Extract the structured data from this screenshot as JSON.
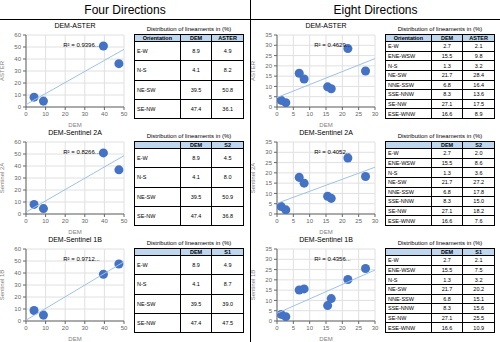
{
  "chart_data": [
    {
      "group": "Four Directions",
      "type": "scatter",
      "title": "DEM-ASTER",
      "xlabel": "DEM",
      "ylabel": "ASTER",
      "annotations": [
        "R² = 0.9396..."
      ],
      "grid": true,
      "xlim": [
        0,
        50
      ],
      "ylim": [
        0,
        60
      ],
      "xticks": [
        0,
        10,
        20,
        30,
        40,
        50
      ],
      "yticks": [
        0,
        10,
        20,
        30,
        40,
        50,
        60
      ],
      "series": [
        {
          "type": "scatter",
          "color": "#4472C4",
          "x": [
            8.9,
            4.1,
            39.5,
            47.4
          ],
          "values": [
            4.9,
            8.2,
            50.8,
            36.1
          ]
        },
        {
          "type": "line",
          "color": "#9DC3E6",
          "x": [
            0,
            50
          ],
          "values": [
            1.986,
            48.0601
          ]
        }
      ],
      "table": {
        "title": "Distribution of lineaments in (%)",
        "color": "#BDD7EE",
        "header": [
          "Orientation",
          "DEM",
          "ASTER"
        ],
        "rows": [
          [
            "E-W",
            "8.9",
            "4.9"
          ],
          [
            "N-S",
            "4.1",
            "8.2"
          ],
          [
            "NE-SW",
            "39.5",
            "50.8"
          ],
          [
            "SE-NW",
            "47.4",
            "36.1"
          ]
        ]
      }
    },
    {
      "group": "Four Directions",
      "type": "scatter",
      "title": "DEM-Sentinel 2A",
      "xlabel": "DEM",
      "ylabel": "Sentinel 2A",
      "annotations": [
        "R² = 0.8266..."
      ],
      "grid": true,
      "xlim": [
        0,
        50
      ],
      "ylim": [
        0,
        60
      ],
      "xticks": [
        0,
        10,
        20,
        30,
        40,
        50
      ],
      "yticks": [
        0,
        10,
        20,
        30,
        40,
        50,
        60
      ],
      "series": [
        {
          "type": "scatter",
          "color": "#4472C4",
          "x": [
            8.9,
            4.1,
            39.5,
            47.4
          ],
          "values": [
            4.5,
            8.0,
            50.9,
            36.8
          ]
        },
        {
          "type": "line",
          "color": "#9DC3E6",
          "x": [
            0,
            50
          ],
          "values": [
            1.5437,
            48.6033
          ]
        }
      ],
      "table": {
        "title": "Distribution of lineaments in (%)",
        "color": "#BDD7EE",
        "header": [
          null,
          "DEM",
          "S2"
        ],
        "rows": [
          [
            "E-W",
            "8.9",
            "4.5"
          ],
          [
            "N-S",
            "4.1",
            "8.0"
          ],
          [
            "NE-SW",
            "39.5",
            "50.9"
          ],
          [
            "SE-NW",
            "47.4",
            "36.8"
          ]
        ]
      }
    },
    {
      "group": "Four Directions",
      "type": "scatter",
      "title": "DEM-Sentinel 1B",
      "xlabel": "DEM",
      "ylabel": "Sentinel 1B",
      "annotations": [
        "R² = 0.9712..."
      ],
      "grid": true,
      "xlim": [
        0,
        50
      ],
      "ylim": [
        0,
        60
      ],
      "xticks": [
        0,
        10,
        20,
        30,
        40,
        50
      ],
      "yticks": [
        0,
        10,
        20,
        30,
        40,
        50,
        60
      ],
      "series": [
        {
          "type": "scatter",
          "color": "#4472C4",
          "x": [
            8.9,
            4.1,
            39.5,
            47.4
          ],
          "values": [
            4.9,
            8.7,
            39.0,
            47.5
          ]
        },
        {
          "type": "line",
          "color": "#9DC3E6",
          "x": [
            0,
            50
          ],
          "values": [
            0.7018,
            49.3969
          ]
        }
      ],
      "table": {
        "title": "Distribution of lineaments in (%)",
        "color": "#BDD7EE",
        "header": [
          null,
          "DEM",
          "S1"
        ],
        "rows": [
          [
            "E-W",
            "8.9",
            "4.9"
          ],
          [
            "N-S",
            "4.1",
            "8.7"
          ],
          [
            "NE-SW",
            "39.5",
            "39.0"
          ],
          [
            "SE-NW",
            "47.4",
            "47.5"
          ]
        ]
      }
    },
    {
      "group": "Eight Directions",
      "type": "scatter",
      "title": "DEM-ASTER",
      "xlabel": "DEM",
      "ylabel": "ASTER",
      "annotations": [
        "R² = 0.4629..."
      ],
      "grid": true,
      "xlim": [
        0,
        30
      ],
      "ylim": [
        0,
        35
      ],
      "xticks": [
        0,
        5,
        10,
        15,
        20,
        25,
        30
      ],
      "yticks": [
        0,
        5,
        10,
        15,
        20,
        25,
        30,
        35
      ],
      "series": [
        {
          "type": "scatter",
          "color": "#4472C4",
          "x": [
            2.7,
            15.5,
            1.3,
            21.7,
            6.8,
            8.3,
            27.1,
            16.6
          ],
          "values": [
            2.1,
            9.8,
            3.2,
            28.4,
            16.4,
            13.6,
            17.5,
            8.9
          ]
        },
        {
          "type": "line",
          "color": "#9DC3E6",
          "x": [
            0,
            30
          ],
          "values": [
            4.5986,
            23.532
          ]
        }
      ],
      "table": {
        "title": "Distribution of lineaments in (%)",
        "color": "#BDD7EE",
        "header": [
          "Orientation",
          "DEM",
          "ASTER"
        ],
        "rows": [
          [
            "E-W",
            "2.7",
            "2.1"
          ],
          [
            "ENE-WSW",
            "15.5",
            "9.8"
          ],
          [
            "N-S",
            "1.3",
            "3.2"
          ],
          [
            "NE-SW",
            "21.7",
            "28.4"
          ],
          [
            "NNE-SSW",
            "6.8",
            "16.4"
          ],
          [
            "SSE-NNW",
            "8.3",
            "13.6"
          ],
          [
            "SE-NW",
            "27.1",
            "17.5"
          ],
          [
            "ESE-WNW",
            "16.6",
            "8.9"
          ]
        ]
      }
    },
    {
      "group": "Eight Directions",
      "type": "scatter",
      "title": "DEM-Sentinel 2A",
      "xlabel": "DEM",
      "ylabel": "Sentinel 2A",
      "annotations": [
        "R² = 0.4052..."
      ],
      "grid": true,
      "xlim": [
        0,
        30
      ],
      "ylim": [
        0,
        35
      ],
      "xticks": [
        0,
        5,
        10,
        15,
        20,
        25,
        30
      ],
      "yticks": [
        0,
        5,
        10,
        15,
        20,
        25,
        30,
        35
      ],
      "series": [
        {
          "type": "scatter",
          "color": "#4472C4",
          "x": [
            2.7,
            15.5,
            1.3,
            21.7,
            6.8,
            8.3,
            27.1,
            16.6
          ],
          "values": [
            2.0,
            8.6,
            3.6,
            27.2,
            17.8,
            15.0,
            18.2,
            7.6
          ]
        },
        {
          "type": "line",
          "color": "#9DC3E6",
          "x": [
            0,
            30
          ],
          "values": [
            5.1804,
            22.7474
          ]
        }
      ],
      "table": {
        "title": "Distribution of lineaments in (%)",
        "color": "#BDD7EE",
        "header": [
          null,
          "DEM",
          "S2"
        ],
        "rows": [
          [
            "E-W",
            "2.7",
            "2.0"
          ],
          [
            "ENE-WSW",
            "15.5",
            "8.6"
          ],
          [
            "N-S",
            "1.3",
            "3.6"
          ],
          [
            "NE-SW",
            "21.7",
            "27.2"
          ],
          [
            "NNE-SSW",
            "6.8",
            "17.8"
          ],
          [
            "SSE-NNW",
            "8.3",
            "15.0"
          ],
          [
            "SE-NW",
            "27.1",
            "18.2"
          ],
          [
            "ESE-WNW",
            "16.6",
            "7.6"
          ]
        ]
      }
    },
    {
      "group": "Eight Directions",
      "type": "scatter",
      "title": "DEM-Sentinel 1B",
      "xlabel": "DEM",
      "ylabel": "Sentinel 1B",
      "annotations": [
        "R² = 0.4356..."
      ],
      "grid": true,
      "xlim": [
        0,
        30
      ],
      "ylim": [
        0,
        35
      ],
      "xticks": [
        0,
        5,
        10,
        15,
        20,
        25,
        30
      ],
      "yticks": [
        0,
        5,
        10,
        15,
        20,
        25,
        30,
        35
      ],
      "series": [
        {
          "type": "scatter",
          "color": "#4472C4",
          "x": [
            2.7,
            15.5,
            1.3,
            21.7,
            6.8,
            8.3,
            27.1,
            16.6
          ],
          "values": [
            2.1,
            7.5,
            3.2,
            20.2,
            15.1,
            15.6,
            25.5,
            10.9
          ]
        },
        {
          "type": "line",
          "color": "#9DC3E6",
          "x": [
            0,
            30
          ],
          "values": [
            3.7485,
            24.7821
          ]
        }
      ],
      "table": {
        "title": "Distribution of lineaments in (%)",
        "color": "#BDD7EE",
        "header": [
          null,
          "DEM",
          "S1"
        ],
        "rows": [
          [
            "E-W",
            "2.7",
            "2.1"
          ],
          [
            "ENE-WSW",
            "15.5",
            "7.5"
          ],
          [
            "N-S",
            "1.3",
            "3.2"
          ],
          [
            "NE-SW",
            "21.7",
            "20.2"
          ],
          [
            "NNE-SSW",
            "6.8",
            "15.1"
          ],
          [
            "SSE-NNW",
            "8.3",
            "15.6"
          ],
          [
            "SE-NW",
            "27.1",
            "25.5"
          ],
          [
            "ESE-WNW",
            "16.6",
            "10.9"
          ]
        ]
      }
    }
  ]
}
